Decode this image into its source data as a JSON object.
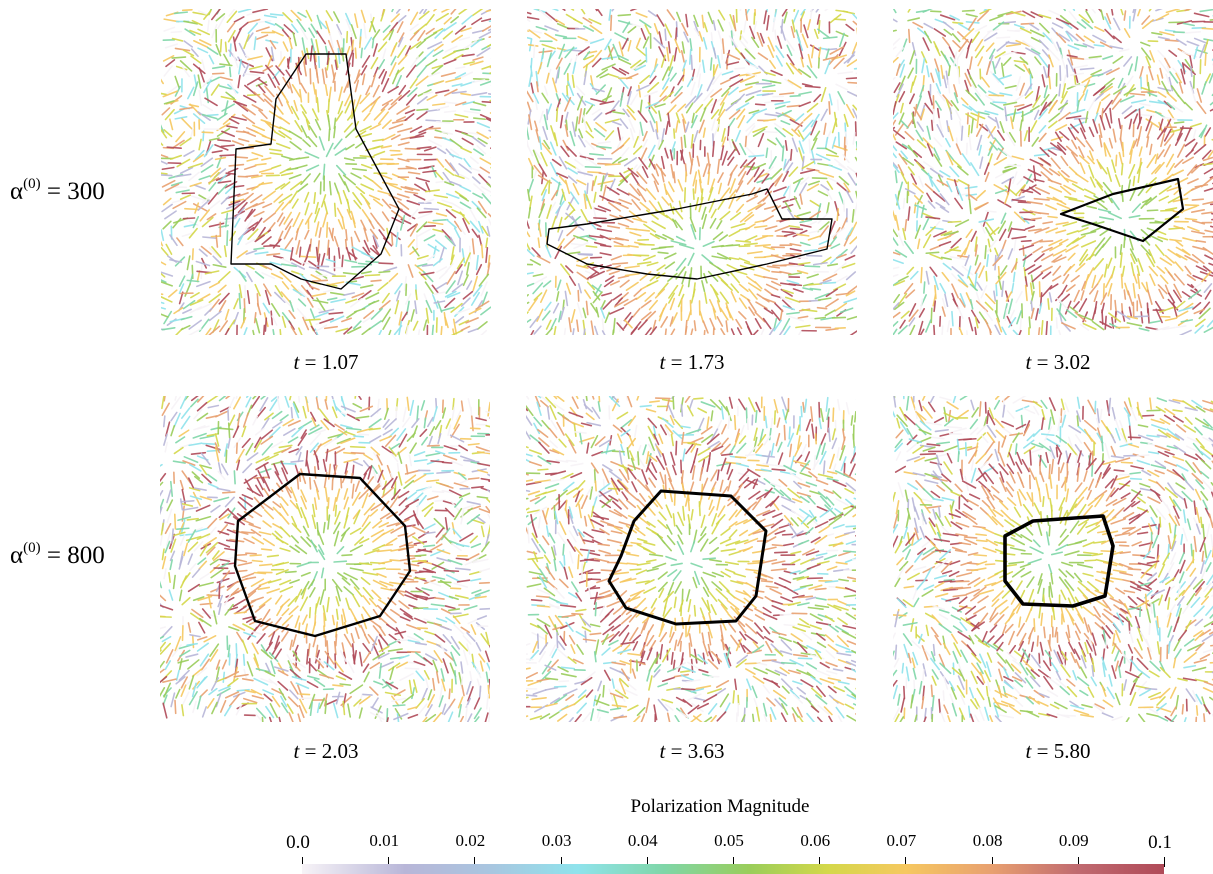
{
  "rows": [
    {
      "symbol": "α",
      "superscript": "(0)",
      "value": "= 300"
    },
    {
      "symbol": "α",
      "superscript": "(0)",
      "value": "= 800"
    }
  ],
  "panels": [
    {
      "row": 0,
      "col": 0,
      "t_var": "t",
      "t_value": "= 1.07"
    },
    {
      "row": 0,
      "col": 1,
      "t_var": "t",
      "t_value": "= 1.73"
    },
    {
      "row": 0,
      "col": 2,
      "t_var": "t",
      "t_value": "= 3.02"
    },
    {
      "row": 1,
      "col": 0,
      "t_var": "t",
      "t_value": "= 2.03"
    },
    {
      "row": 1,
      "col": 1,
      "t_var": "t",
      "t_value": "= 3.63"
    },
    {
      "row": 1,
      "col": 2,
      "t_var": "t",
      "t_value": "= 5.80"
    }
  ],
  "colorbar": {
    "title": "Polarization Magnitude",
    "ticks": [
      "0.0",
      "0.01",
      "0.02",
      "0.03",
      "0.04",
      "0.05",
      "0.06",
      "0.07",
      "0.08",
      "0.09",
      "0.1"
    ],
    "min": 0.0,
    "max": 0.1,
    "colors": [
      "#f7f3f7",
      "#b8b6d8",
      "#8fe3ec",
      "#7fd6a8",
      "#9acd5a",
      "#d4d84a",
      "#f6c860",
      "#e8a070",
      "#b04a58"
    ]
  }
}
